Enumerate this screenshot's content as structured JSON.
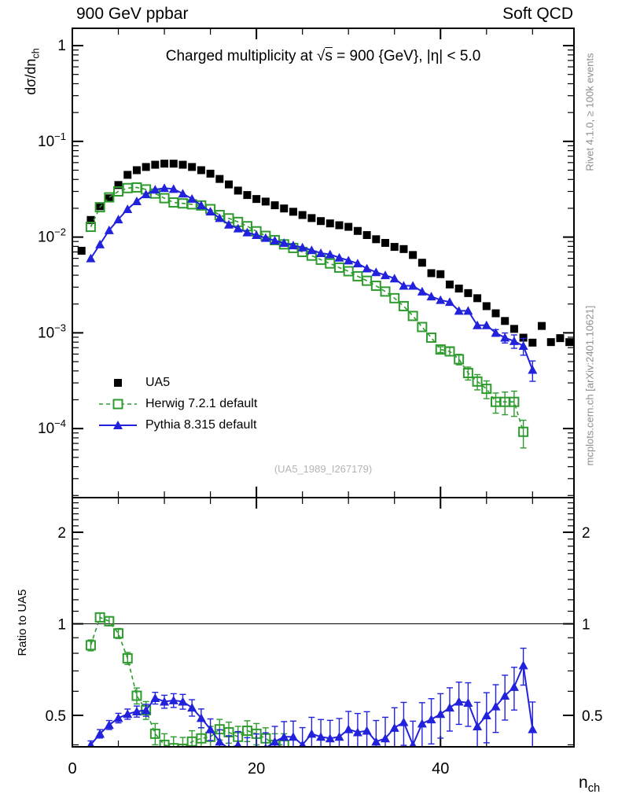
{
  "header": {
    "left": "900 GeV ppbar",
    "right": "Soft QCD"
  },
  "title": {
    "pre": "Charged multiplicity at ",
    "sqrt_arg": "s",
    "post": " = 900 {GeV}, |η| < 5.0"
  },
  "labels": {
    "y_pre": "dσ/dn",
    "y_sub": "ch",
    "x_pre": "n",
    "x_sub": "ch",
    "ratio_y": "Ratio to UA5"
  },
  "side": {
    "top": "Rivet 4.1.0, ≥ 100k events",
    "bottom": "mcplots.cern.ch [arXiv:2401.10621]"
  },
  "watermark": "(UA5_1989_I267179)",
  "colors": {
    "ua5": "#000000",
    "herwig": "#2e9b2e",
    "pythia": "#2222dd",
    "frame": "#000000",
    "gray_text": "#8e8e8e",
    "watermark": "#b4b4b4"
  },
  "legend": [
    {
      "label": "UA5",
      "marker": "square-filled",
      "line": "none",
      "color": "#000000"
    },
    {
      "label": "Herwig 7.2.1 default",
      "marker": "square-open",
      "line": "dashed",
      "color": "#2e9b2e"
    },
    {
      "label": "Pythia 8.315 default",
      "marker": "triangle-filled",
      "line": "solid",
      "color": "#2222dd"
    }
  ],
  "chart_data": [
    {
      "type": "scatter",
      "panel": "main",
      "title": "Charged multiplicity at √s = 900 {GeV}, |η| < 5.0",
      "xlabel": "n_ch",
      "ylabel": "dσ/dn_ch",
      "x_scale": "linear",
      "y_scale": "log",
      "xlim": [
        0,
        54.5
      ],
      "ylim": [
        1.9e-05,
        1.517
      ],
      "y_tick_exponents": [
        0,
        -1,
        -2,
        -3,
        -4
      ],
      "x_ticks_major": [
        0,
        20,
        40
      ],
      "x_ticks_minor_step": 5,
      "grid": false,
      "legend_position": "middle-left",
      "series": [
        {
          "name": "UA5",
          "marker": "square-filled",
          "line": "none",
          "color": "#000000",
          "x": [
            1,
            2,
            3,
            4,
            5,
            6,
            7,
            8,
            9,
            10,
            11,
            12,
            13,
            14,
            15,
            16,
            17,
            18,
            19,
            20,
            21,
            22,
            23,
            24,
            25,
            26,
            27,
            28,
            29,
            30,
            31,
            32,
            33,
            34,
            35,
            36,
            37,
            38,
            39,
            40,
            41,
            42,
            43,
            44,
            45,
            46,
            47,
            48,
            49,
            50,
            51,
            52,
            53,
            54
          ],
          "y": [
            0.0072,
            0.0151,
            0.021,
            0.0254,
            0.035,
            0.0447,
            0.05,
            0.054,
            0.057,
            0.0585,
            0.0585,
            0.057,
            0.054,
            0.05,
            0.046,
            0.0405,
            0.0355,
            0.0306,
            0.0275,
            0.025,
            0.0235,
            0.0215,
            0.0199,
            0.0184,
            0.017,
            0.0158,
            0.0147,
            0.0139,
            0.0133,
            0.0128,
            0.0116,
            0.0105,
            0.0095,
            0.0087,
            0.0079,
            0.0075,
            0.0065,
            0.0054,
            0.0042,
            0.0041,
            0.0032,
            0.0029,
            0.0026,
            0.0023,
            0.0019,
            0.0016,
            0.00133,
            0.0011,
            0.00089,
            0.00079,
            0.00118,
            0.0008,
            0.00088,
            0.0008
          ],
          "err": {
            "kind": "none"
          }
        },
        {
          "name": "Herwig 7.2.1 default",
          "marker": "square-open",
          "line": "dashed",
          "color": "#2e9b2e",
          "x": [
            2,
            3,
            4,
            5,
            6,
            7,
            8,
            9,
            10,
            11,
            12,
            13,
            14,
            15,
            16,
            17,
            18,
            19,
            20,
            21,
            22,
            23,
            24,
            25,
            26,
            27,
            28,
            29,
            30,
            31,
            32,
            33,
            34,
            35,
            36,
            37,
            38,
            39,
            40,
            41,
            42,
            43,
            44,
            45,
            46,
            47,
            48,
            49
          ],
          "y": [
            0.0128,
            0.0205,
            0.026,
            0.03,
            0.0325,
            0.033,
            0.0315,
            0.0285,
            0.0255,
            0.023,
            0.0225,
            0.022,
            0.0214,
            0.0196,
            0.017,
            0.0157,
            0.0144,
            0.013,
            0.0115,
            0.0103,
            0.0093,
            0.0084,
            0.0077,
            0.007,
            0.0064,
            0.0058,
            0.0053,
            0.0048,
            0.0044,
            0.0039,
            0.0035,
            0.0031,
            0.0027,
            0.0023,
            0.0019,
            0.0015,
            0.00115,
            0.00089,
            0.00067,
            0.00064,
            0.00053,
            0.00038,
            0.00031,
            0.00026,
            0.00019,
            0.00019,
            0.00019,
            9.25e-05
          ],
          "err": {
            "kind": "frac-tail",
            "start_x": 40,
            "base": 0.07,
            "slope": 0.028
          }
        },
        {
          "name": "Pythia 8.315 default",
          "marker": "triangle-filled",
          "line": "solid",
          "color": "#2222dd",
          "x": [
            2,
            3,
            4,
            5,
            6,
            7,
            8,
            9,
            10,
            11,
            12,
            13,
            14,
            15,
            16,
            17,
            18,
            19,
            20,
            21,
            22,
            23,
            24,
            25,
            26,
            27,
            28,
            29,
            30,
            31,
            32,
            33,
            34,
            35,
            36,
            37,
            38,
            39,
            40,
            41,
            42,
            43,
            44,
            45,
            46,
            47,
            48,
            49,
            50
          ],
          "y": [
            0.006,
            0.0084,
            0.0118,
            0.0153,
            0.0196,
            0.0237,
            0.028,
            0.0313,
            0.0325,
            0.0318,
            0.0285,
            0.0251,
            0.0215,
            0.0185,
            0.0158,
            0.0135,
            0.0123,
            0.0112,
            0.0105,
            0.0098,
            0.0092,
            0.0087,
            0.0082,
            0.0078,
            0.0073,
            0.0068,
            0.0066,
            0.0061,
            0.0057,
            0.0053,
            0.0047,
            0.0043,
            0.004,
            0.0037,
            0.0031,
            0.0031,
            0.0027,
            0.0024,
            0.0022,
            0.0021,
            0.0017,
            0.0017,
            0.0012,
            0.0012,
            0.001,
            0.00089,
            0.00082,
            0.00073,
            0.00041
          ],
          "err": {
            "kind": "frac-tail",
            "start_x": 46,
            "base": 0.08,
            "slope": 0.04
          }
        }
      ]
    },
    {
      "type": "ratio",
      "panel": "ratio",
      "ylabel": "Ratio to UA5",
      "x_scale": "linear",
      "y_scale": "log",
      "xlim": [
        0,
        54.5
      ],
      "ylim": [
        0.394,
        2.6
      ],
      "y_ticks_major": [
        2,
        1,
        0.5
      ],
      "y_ticks_minor": [
        0.4,
        0.6,
        0.7,
        0.8,
        0.9,
        1.1,
        1.2,
        1.3,
        1.4,
        1.5,
        1.6,
        1.7,
        1.8,
        1.9,
        2.1,
        2.2,
        2.3,
        2.4,
        2.5
      ],
      "x_ticks_major": [
        0,
        20,
        40
      ],
      "x_ticks_minor_step": 5,
      "reference_line": 1,
      "series": [
        {
          "name": "Herwig 7.2.1 default / UA5",
          "marker": "square-open",
          "line": "dashed",
          "color": "#2e9b2e",
          "x": [
            2,
            3,
            4,
            5,
            6,
            7,
            8,
            9,
            10,
            11,
            12,
            13,
            14,
            15,
            16,
            17,
            18,
            19,
            20,
            21,
            22,
            23
          ],
          "y": [
            0.85,
            1.05,
            1.02,
            0.93,
            0.77,
            0.58,
            0.52,
            0.435,
            0.4,
            0.39,
            0.388,
            0.41,
            0.42,
            0.425,
            0.45,
            0.44,
            0.425,
            0.445,
            0.435,
            0.42,
            0.4,
            0.4
          ],
          "err": {
            "kind": "abs-const",
            "value": 0.035
          }
        },
        {
          "name": "Pythia 8.315 default / UA5",
          "marker": "triangle-filled",
          "line": "solid",
          "color": "#2222dd",
          "x": [
            2,
            3,
            4,
            5,
            6,
            7,
            8,
            9,
            10,
            11,
            12,
            13,
            14,
            15,
            16,
            17,
            18,
            19,
            20,
            21,
            22,
            23,
            24,
            25,
            26,
            27,
            28,
            29,
            30,
            31,
            32,
            33,
            34,
            35,
            36,
            37,
            38,
            39,
            40,
            41,
            42,
            43,
            44,
            45,
            46,
            47,
            48,
            49,
            50
          ],
          "y": [
            0.4,
            0.435,
            0.465,
            0.49,
            0.505,
            0.515,
            0.52,
            0.57,
            0.555,
            0.56,
            0.555,
            0.53,
            0.49,
            0.45,
            0.41,
            0.388,
            0.4,
            0.378,
            0.388,
            0.39,
            0.41,
            0.425,
            0.425,
            0.4,
            0.435,
            0.425,
            0.42,
            0.425,
            0.45,
            0.44,
            0.445,
            0.41,
            0.42,
            0.455,
            0.475,
            0.4,
            0.47,
            0.485,
            0.505,
            0.53,
            0.555,
            0.55,
            0.46,
            0.5,
            0.535,
            0.58,
            0.62,
            0.73,
            0.45
          ],
          "err": {
            "kind": "abs-linear",
            "base": 0.012,
            "slope": 0.0019
          }
        }
      ]
    }
  ]
}
